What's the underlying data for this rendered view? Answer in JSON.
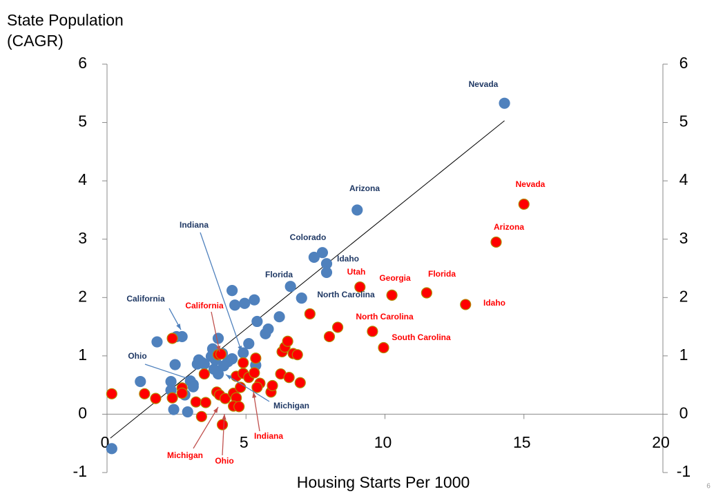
{
  "chart_data": {
    "type": "scatter",
    "y_title_lines": [
      "State Population",
      "(CAGR)"
    ],
    "x_label": "Housing Starts Per 1000",
    "page_number": "6",
    "xlim": [
      0,
      20
    ],
    "xticks": [
      0,
      5,
      10,
      15,
      20
    ],
    "ylim": [
      -1,
      6
    ],
    "yticks": [
      -1,
      0,
      1,
      2,
      3,
      4,
      5,
      6
    ],
    "y2lim": [
      -1,
      6
    ],
    "y2ticks": [
      -1,
      0,
      1,
      2,
      3,
      4,
      5,
      6
    ],
    "series": [
      {
        "color": "#4f81bd",
        "edgecolor": "#4f81bd",
        "x": [
          14.3,
          9.0,
          7.75,
          7.45,
          7.9,
          7.9,
          6.6,
          7.0,
          4.5,
          4.6,
          4.95,
          5.3,
          5.4,
          6.2,
          5.8,
          5.7,
          1.8,
          2.5,
          2.7,
          4.0,
          3.8,
          5.1,
          4.9,
          3.75,
          4.15,
          2.45,
          3.3,
          3.25,
          3.4,
          3.5,
          3.9,
          4.35,
          4.5,
          4.2,
          5.35,
          4.0,
          1.2,
          2.3,
          3.0,
          3.1,
          2.3,
          2.8,
          3.1,
          2.4,
          2.9,
          0.17,
          3.85
        ],
        "values": [
          5.33,
          3.5,
          2.77,
          2.69,
          2.58,
          2.43,
          2.19,
          1.99,
          2.12,
          1.87,
          1.9,
          1.96,
          1.59,
          1.67,
          1.46,
          1.38,
          1.24,
          1.33,
          1.33,
          1.3,
          1.12,
          1.21,
          1.05,
          0.99,
          1.04,
          0.85,
          0.93,
          0.86,
          0.89,
          0.86,
          0.93,
          0.9,
          0.95,
          0.83,
          0.84,
          0.69,
          0.56,
          0.56,
          0.57,
          0.51,
          0.41,
          0.33,
          0.47,
          0.08,
          0.04,
          -0.59,
          0.77
        ]
      },
      {
        "color": "#ff0000",
        "edgecolor": "#b08a00",
        "x": [
          15.0,
          14.0,
          9.1,
          10.25,
          11.5,
          12.9,
          7.3,
          8.3,
          8.0,
          9.55,
          9.95,
          0.17,
          1.35,
          1.75,
          2.35,
          2.7,
          2.7,
          2.35,
          3.2,
          3.55,
          3.4,
          3.5,
          4.0,
          4.1,
          3.95,
          4.05,
          4.25,
          4.15,
          4.55,
          4.65,
          4.55,
          4.75,
          4.65,
          4.9,
          5.1,
          4.9,
          5.3,
          5.35,
          5.5,
          5.4,
          4.8,
          5.9,
          5.95,
          6.25,
          6.55,
          6.3,
          6.4,
          6.5,
          6.7,
          6.85,
          6.95
        ],
        "values": [
          3.6,
          2.95,
          2.18,
          2.04,
          2.08,
          1.88,
          1.72,
          1.49,
          1.33,
          1.42,
          1.14,
          0.35,
          0.35,
          0.27,
          1.3,
          0.45,
          0.36,
          0.28,
          0.21,
          0.2,
          -0.04,
          0.69,
          1.02,
          1.03,
          0.38,
          0.33,
          0.27,
          -0.18,
          0.36,
          0.28,
          0.14,
          0.13,
          0.65,
          0.7,
          0.63,
          0.88,
          0.71,
          0.96,
          0.53,
          0.46,
          0.46,
          0.38,
          0.49,
          0.69,
          0.63,
          1.07,
          1.15,
          1.25,
          1.04,
          1.02,
          0.54
        ]
      }
    ],
    "trend_line": {
      "x": [
        0.12,
        14.3
      ],
      "values": [
        -0.41,
        5.03
      ],
      "color": "#000000"
    },
    "annotations": [
      {
        "text": "Nevada",
        "color": "#1f3864"
      },
      {
        "text": "Arizona",
        "color": "#1f3864"
      },
      {
        "text": "Colorado",
        "color": "#1f3864"
      },
      {
        "text": "Idaho",
        "color": "#1f3864"
      },
      {
        "text": "Florida",
        "color": "#1f3864"
      },
      {
        "text": "North Carolina",
        "color": "#1f3864"
      },
      {
        "text": "California",
        "color": "#1f3864"
      },
      {
        "text": "Indiana",
        "color": "#1f3864"
      },
      {
        "text": "Ohio",
        "color": "#1f3864"
      },
      {
        "text": "Michigan",
        "color": "#1f3864"
      },
      {
        "text": "Nevada",
        "color": "#ff0000"
      },
      {
        "text": "Arizona",
        "color": "#ff0000"
      },
      {
        "text": "Utah",
        "color": "#ff0000"
      },
      {
        "text": "Georgia",
        "color": "#ff0000"
      },
      {
        "text": "Florida",
        "color": "#ff0000"
      },
      {
        "text": "Idaho",
        "color": "#ff0000"
      },
      {
        "text": "North Carolina",
        "color": "#ff0000"
      },
      {
        "text": "South Carolina",
        "color": "#ff0000"
      },
      {
        "text": "California",
        "color": "#ff0000"
      },
      {
        "text": "Indiana",
        "color": "#ff0000"
      },
      {
        "text": "Michigan",
        "color": "#ff0000"
      },
      {
        "text": "Ohio",
        "color": "#ff0000"
      }
    ]
  }
}
